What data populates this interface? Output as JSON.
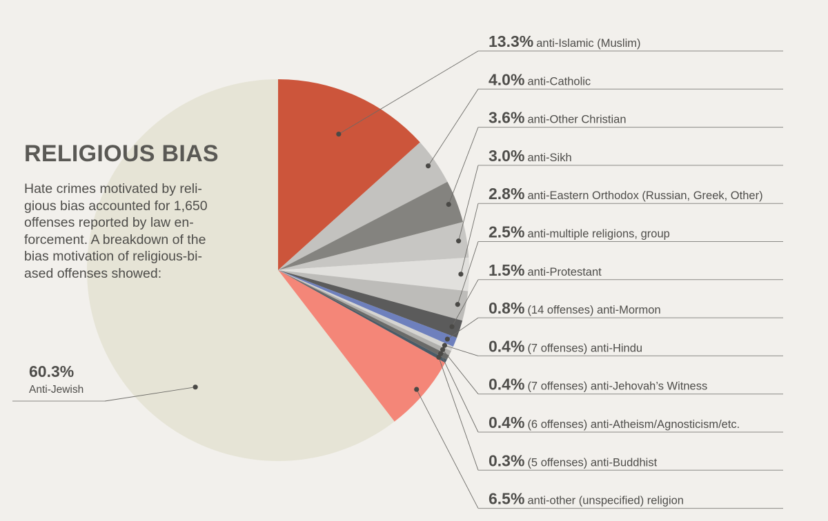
{
  "title": "RELIGIOUS BIAS",
  "description_lines": [
    "Hate crimes motivated by reli-",
    "gious bias accounted for 1,650",
    "offenses reported by law en-",
    "forcement. A breakdown of the",
    "bias motivation of religious-bi-",
    "ased offenses showed:"
  ],
  "chart_data": {
    "type": "pie",
    "title": "RELIGIOUS BIAS",
    "total_offenses": 1650,
    "slices": [
      {
        "pct_text": "13.3%",
        "value": 13.3,
        "label": "anti-Islamic (Muslim)",
        "color": "#cc553b"
      },
      {
        "pct_text": "4.0%",
        "value": 4.0,
        "label": "anti-Catholic",
        "color": "#c3c2bf"
      },
      {
        "pct_text": "3.6%",
        "value": 3.6,
        "label": "anti-Other Christian",
        "color": "#84837f"
      },
      {
        "pct_text": "3.0%",
        "value": 3.0,
        "label": "anti-Sikh",
        "color": "#c7c6c3"
      },
      {
        "pct_text": "2.8%",
        "value": 2.8,
        "label": "anti-Eastern Orthodox (Russian, Greek, Other)",
        "color": "#e1e0dd"
      },
      {
        "pct_text": "2.5%",
        "value": 2.5,
        "label": "anti-multiple religions, group",
        "color": "#bdbcb9"
      },
      {
        "pct_text": "1.5%",
        "value": 1.5,
        "label": "anti-Protestant",
        "color": "#5b5b5b"
      },
      {
        "pct_text": "0.8%",
        "value": 0.8,
        "label": "(14 offenses) anti-Mormon",
        "color": "#6e80bd"
      },
      {
        "pct_text": "0.4%",
        "value": 0.4,
        "label": "(7 offenses) anti-Hindu",
        "color": "#d6d5d2"
      },
      {
        "pct_text": "0.4%",
        "value": 0.4,
        "label": "(7 offenses) anti-Jehovah’s Witness",
        "color": "#b0afac"
      },
      {
        "pct_text": "0.4%",
        "value": 0.4,
        "label": "(6 offenses) anti-Atheism/Agnosticism/etc.",
        "color": "#6a6a68"
      },
      {
        "pct_text": "0.3%",
        "value": 0.3,
        "label": "(5 offenses) anti-Buddhist",
        "color": "#4a5b67"
      },
      {
        "pct_text": "6.5%",
        "value": 6.5,
        "label": "anti-other (unspecified) religion",
        "color": "#f48678"
      }
    ],
    "main_slice": {
      "pct_text": "60.3%",
      "value": 60.3,
      "label": "Anti-Jewish",
      "color": "#e6e4d6"
    }
  },
  "colors": {
    "background": "#f2f0ec",
    "text": "#4e4d4a",
    "leader": "#6b6a66",
    "rule": "#8a8985"
  }
}
